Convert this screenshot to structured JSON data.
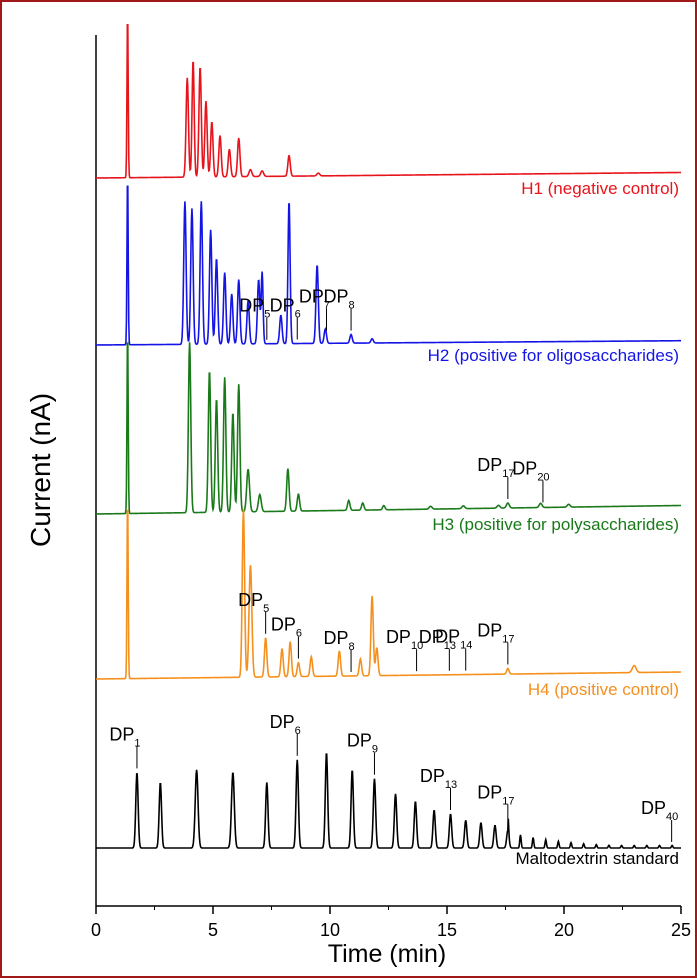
{
  "chart_data": {
    "type": "line",
    "xlabel": "Time (min)",
    "ylabel": "Current (nA)",
    "xlim": [
      0,
      25
    ],
    "xticks": [
      "0",
      "5",
      "10",
      "15",
      "20",
      "25"
    ],
    "grid": false,
    "legend": "none (traces labeled in place, lower-right of each trace)",
    "series": [
      {
        "name": "H1 (negative control)",
        "color": "#e8141c",
        "baseline": 0.04,
        "peaks": [
          [
            1.35,
            1.2,
            0.025
          ],
          [
            3.9,
            0.72,
            0.05
          ],
          [
            4.15,
            0.85,
            0.045
          ],
          [
            4.45,
            0.8,
            0.05
          ],
          [
            4.7,
            0.55,
            0.05
          ],
          [
            4.95,
            0.4,
            0.05
          ],
          [
            5.3,
            0.3,
            0.05
          ],
          [
            5.7,
            0.2,
            0.05
          ],
          [
            6.1,
            0.28,
            0.05
          ],
          [
            6.6,
            0.05,
            0.06
          ],
          [
            7.1,
            0.04,
            0.06
          ],
          [
            8.25,
            0.15,
            0.05
          ],
          [
            9.5,
            0.02,
            0.06
          ]
        ],
        "annotations": []
      },
      {
        "name": "H2 (positive for oligosaccharides)",
        "color": "#1414e6",
        "baseline": 0.03,
        "peaks": [
          [
            1.35,
            1.2,
            0.025
          ],
          [
            3.8,
            1.0,
            0.05
          ],
          [
            4.1,
            0.95,
            0.05
          ],
          [
            4.5,
            1.0,
            0.05
          ],
          [
            4.9,
            0.8,
            0.05
          ],
          [
            5.15,
            0.6,
            0.05
          ],
          [
            5.5,
            0.5,
            0.05
          ],
          [
            5.8,
            0.35,
            0.05
          ],
          [
            6.1,
            0.45,
            0.05
          ],
          [
            6.5,
            0.3,
            0.05
          ],
          [
            6.95,
            0.45,
            0.05
          ],
          [
            7.1,
            0.5,
            0.04
          ],
          [
            7.9,
            0.2,
            0.05
          ],
          [
            8.25,
            1.0,
            0.045
          ],
          [
            9.45,
            0.55,
            0.05
          ],
          [
            9.8,
            0.1,
            0.05
          ],
          [
            10.9,
            0.06,
            0.05
          ],
          [
            11.8,
            0.03,
            0.05
          ]
        ],
        "annotations": [
          {
            "base": "DP",
            "sub": "5",
            "x": 7.3
          },
          {
            "base": "DP",
            "sub": "6",
            "x": 8.6
          },
          {
            "base": "DP",
            "sub": "7",
            "x": 9.85
          },
          {
            "base": "DP",
            "sub": "8",
            "x": 10.9
          }
        ]
      },
      {
        "name": "H3 (positive for polysaccharides)",
        "color": "#1a7a1a",
        "baseline": 0.06,
        "peaks": [
          [
            1.35,
            1.3,
            0.025
          ],
          [
            4.0,
            1.2,
            0.05
          ],
          [
            4.85,
            1.0,
            0.05
          ],
          [
            5.15,
            0.8,
            0.05
          ],
          [
            5.5,
            0.95,
            0.05
          ],
          [
            5.85,
            0.7,
            0.05
          ],
          [
            6.1,
            0.9,
            0.05
          ],
          [
            6.5,
            0.3,
            0.06
          ],
          [
            7.0,
            0.12,
            0.06
          ],
          [
            8.2,
            0.3,
            0.05
          ],
          [
            8.65,
            0.12,
            0.05
          ],
          [
            10.8,
            0.07,
            0.05
          ],
          [
            11.4,
            0.05,
            0.05
          ],
          [
            12.3,
            0.03,
            0.05
          ],
          [
            14.3,
            0.02,
            0.06
          ],
          [
            15.7,
            0.02,
            0.06
          ],
          [
            17.2,
            0.02,
            0.06
          ],
          [
            17.6,
            0.035,
            0.06
          ],
          [
            19.0,
            0.03,
            0.06
          ],
          [
            20.2,
            0.02,
            0.06
          ]
        ],
        "annotations": [
          {
            "base": "DP",
            "sub": "17",
            "x": 17.6
          },
          {
            "base": "DP",
            "sub": "20",
            "x": 19.1
          }
        ]
      },
      {
        "name": "H4 (positive control)",
        "color": "#f5901e",
        "baseline": 0.05,
        "peaks": [
          [
            1.35,
            1.3,
            0.025
          ],
          [
            6.3,
            1.2,
            0.05
          ],
          [
            6.6,
            0.8,
            0.06
          ],
          [
            7.25,
            0.28,
            0.05
          ],
          [
            7.95,
            0.2,
            0.05
          ],
          [
            8.3,
            0.25,
            0.05
          ],
          [
            8.65,
            0.1,
            0.05
          ],
          [
            9.2,
            0.14,
            0.05
          ],
          [
            10.4,
            0.18,
            0.05
          ],
          [
            11.3,
            0.12,
            0.05
          ],
          [
            11.8,
            0.57,
            0.05
          ],
          [
            12.0,
            0.2,
            0.05
          ],
          [
            17.6,
            0.04,
            0.05
          ],
          [
            23.0,
            0.05,
            0.08
          ]
        ],
        "annotations": [
          {
            "base": "DP",
            "sub": "5",
            "x": 7.25
          },
          {
            "base": "DP",
            "sub": "6",
            "x": 8.65
          },
          {
            "base": "DP",
            "sub": "8",
            "x": 10.9
          },
          {
            "base": "DP",
            "sub": "10",
            "x": 13.7
          },
          {
            "base": "DP",
            "sub": "13",
            "x": 15.1
          },
          {
            "base": "DP",
            "sub": "14",
            "x": 15.8
          },
          {
            "base": "DP",
            "sub": "17",
            "x": 17.6
          }
        ]
      },
      {
        "name": "Maltodextrin standard",
        "color": "#000000",
        "baseline": 0.0,
        "peaks": [
          [
            1.75,
            0.6,
            0.05
          ],
          [
            2.75,
            0.52,
            0.05
          ],
          [
            4.3,
            0.62,
            0.06
          ],
          [
            5.85,
            0.6,
            0.06
          ],
          [
            7.3,
            0.52,
            0.05
          ],
          [
            8.6,
            0.7,
            0.05
          ],
          [
            9.85,
            0.76,
            0.05
          ],
          [
            10.95,
            0.62,
            0.05
          ],
          [
            11.9,
            0.55,
            0.05
          ],
          [
            12.8,
            0.43,
            0.05
          ],
          [
            13.65,
            0.37,
            0.05
          ],
          [
            14.45,
            0.3,
            0.05
          ],
          [
            15.15,
            0.27,
            0.05
          ],
          [
            15.8,
            0.22,
            0.05
          ],
          [
            16.45,
            0.2,
            0.05
          ],
          [
            17.05,
            0.18,
            0.05
          ],
          [
            17.6,
            0.14,
            0.05
          ]
        ],
        "annotations": [
          {
            "base": "DP",
            "sub": "1",
            "x": 1.75
          },
          {
            "base": "DP",
            "sub": "6",
            "x": 8.6
          },
          {
            "base": "DP",
            "sub": "9",
            "x": 11.9
          },
          {
            "base": "DP",
            "sub": "13",
            "x": 15.15
          },
          {
            "base": "DP",
            "sub": "17",
            "x": 17.6
          },
          {
            "base": "DP",
            "sub": "40",
            "x": 24.6
          }
        ]
      }
    ]
  }
}
